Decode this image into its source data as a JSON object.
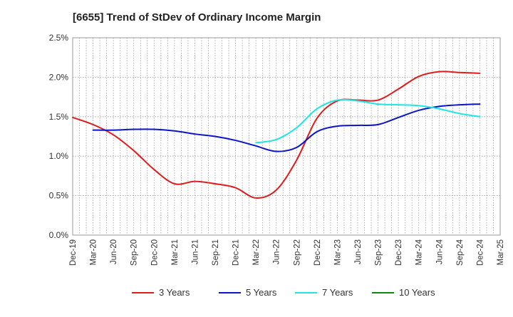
{
  "chart_data": {
    "type": "line",
    "title": "[6655]  Trend of StDev of Ordinary Income Margin",
    "xlabel": "",
    "ylabel": "",
    "ylim": [
      0,
      0.025
    ],
    "y_ticks": [
      0.0,
      0.005,
      0.01,
      0.015,
      0.02,
      0.025
    ],
    "y_tick_labels": [
      "0.0%",
      "0.5%",
      "1.0%",
      "1.5%",
      "2.0%",
      "2.5%"
    ],
    "x_tick_labels": [
      "Dec-19",
      "Mar-20",
      "Jun-20",
      "Sep-20",
      "Dec-20",
      "Mar-21",
      "Jun-21",
      "Sep-21",
      "Dec-21",
      "Mar-22",
      "Jun-22",
      "Sep-22",
      "Dec-22",
      "Mar-23",
      "Jun-23",
      "Sep-23",
      "Dec-23",
      "Mar-24",
      "Jun-24",
      "Sep-24",
      "Dec-24",
      "Mar-25"
    ],
    "grid": true,
    "legend_position": "bottom",
    "series": [
      {
        "name": "3 Years",
        "color": "#e31a1c",
        "x": [
          "Dec-19",
          "Mar-20",
          "Jun-20",
          "Sep-20",
          "Dec-20",
          "Mar-21",
          "Jun-21",
          "Sep-21",
          "Dec-21",
          "Mar-22",
          "Jun-22",
          "Sep-22",
          "Dec-22",
          "Mar-23",
          "Jun-23",
          "Sep-23",
          "Dec-23",
          "Mar-24",
          "Jun-24",
          "Sep-24",
          "Dec-24"
        ],
        "values": [
          0.0149,
          0.014,
          0.0127,
          0.0107,
          0.0083,
          0.0065,
          0.0068,
          0.0065,
          0.006,
          0.0047,
          0.0057,
          0.0095,
          0.0148,
          0.017,
          0.0171,
          0.0171,
          0.0185,
          0.0201,
          0.0207,
          0.0206,
          0.0205
        ]
      },
      {
        "name": "5 Years",
        "color": "#0a14c8",
        "x": [
          "Mar-20",
          "Jun-20",
          "Sep-20",
          "Dec-20",
          "Mar-21",
          "Jun-21",
          "Sep-21",
          "Dec-21",
          "Mar-22",
          "Jun-22",
          "Sep-22",
          "Dec-22",
          "Mar-23",
          "Jun-23",
          "Sep-23",
          "Dec-23",
          "Mar-24",
          "Jun-24",
          "Sep-24",
          "Dec-24"
        ],
        "values": [
          0.0133,
          0.0133,
          0.0134,
          0.0134,
          0.0132,
          0.0128,
          0.0125,
          0.012,
          0.0113,
          0.0106,
          0.0111,
          0.0131,
          0.0138,
          0.0139,
          0.014,
          0.0149,
          0.0158,
          0.0163,
          0.0165,
          0.0166
        ]
      },
      {
        "name": "7 Years",
        "color": "#1ee6e6",
        "x": [
          "Mar-22",
          "Jun-22",
          "Sep-22",
          "Dec-22",
          "Mar-23",
          "Jun-23",
          "Sep-23",
          "Dec-23",
          "Mar-24",
          "Jun-24",
          "Sep-24",
          "Dec-24"
        ],
        "values": [
          0.0117,
          0.0121,
          0.0136,
          0.016,
          0.0171,
          0.017,
          0.0166,
          0.0165,
          0.0164,
          0.016,
          0.0154,
          0.015
        ]
      },
      {
        "name": "10 Years",
        "color": "#118811",
        "x": [],
        "values": []
      }
    ]
  }
}
